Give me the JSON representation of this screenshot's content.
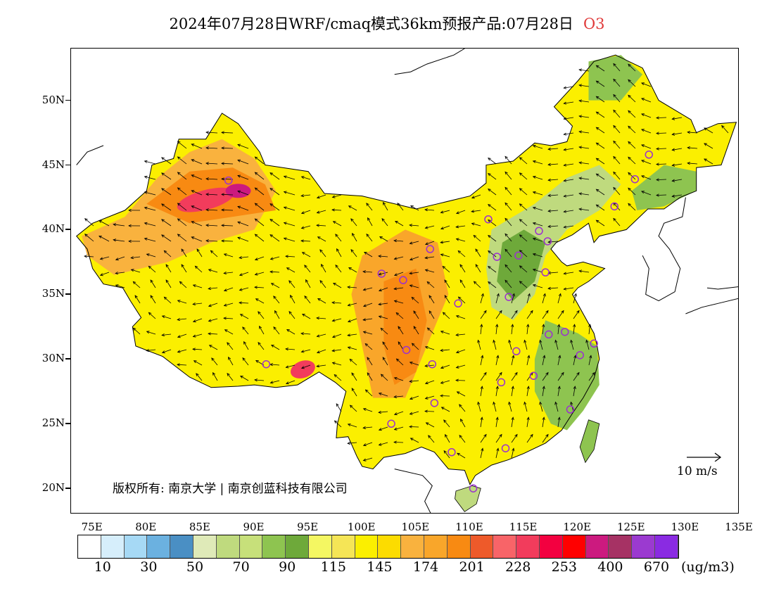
{
  "title": {
    "main": "2024年07月28日WRF/cmaq模式36km预报产品:07月28日",
    "species": "O3"
  },
  "axes": {
    "lat_labels": [
      "50N",
      "45N",
      "40N",
      "35N",
      "30N",
      "25N",
      "20N"
    ],
    "lon_labels": [
      "75E",
      "80E",
      "85E",
      "90E",
      "95E",
      "100E",
      "105E",
      "110E",
      "115E",
      "120E",
      "125E",
      "130E",
      "135E"
    ],
    "lon_range": [
      73,
      135
    ],
    "lat_range": [
      18,
      54
    ]
  },
  "copyright": "版权所有: 南京大学 | 南京创蓝科技有限公司",
  "wind_reference": "10  m/s",
  "colorbar": {
    "colors": [
      "#ffffff",
      "#d6eefb",
      "#a6d9f5",
      "#6bb1e0",
      "#4a8fc4",
      "#dfeab8",
      "#bfda7e",
      "#c7e07a",
      "#8ec450",
      "#6ea93a",
      "#f4f762",
      "#f5e556",
      "#fbef00",
      "#fcdc00",
      "#f9b23e",
      "#f9a62a",
      "#f88a12",
      "#ee5a2a",
      "#f86468",
      "#f23c5c",
      "#f30040",
      "#ff0000",
      "#cc1a7f",
      "#a63264",
      "#9b3ad0",
      "#8a2be2"
    ],
    "labels": [
      "10",
      "30",
      "50",
      "70",
      "90",
      "115",
      "145",
      "174",
      "201",
      "228",
      "253",
      "400",
      "670"
    ],
    "units": "(ug/m3)"
  },
  "stations": [
    {
      "lon": 87.6,
      "lat": 43.8
    },
    {
      "lon": 91.1,
      "lat": 29.6
    },
    {
      "lon": 101.8,
      "lat": 36.6
    },
    {
      "lon": 103.8,
      "lat": 36.1
    },
    {
      "lon": 106.3,
      "lat": 38.5
    },
    {
      "lon": 104.1,
      "lat": 30.7
    },
    {
      "lon": 106.5,
      "lat": 29.6
    },
    {
      "lon": 106.7,
      "lat": 26.6
    },
    {
      "lon": 102.7,
      "lat": 25.0
    },
    {
      "lon": 108.3,
      "lat": 22.8
    },
    {
      "lon": 110.3,
      "lat": 20.0
    },
    {
      "lon": 113.3,
      "lat": 23.1
    },
    {
      "lon": 112.9,
      "lat": 28.2
    },
    {
      "lon": 114.3,
      "lat": 30.6
    },
    {
      "lon": 115.9,
      "lat": 28.7
    },
    {
      "lon": 117.3,
      "lat": 31.9
    },
    {
      "lon": 118.8,
      "lat": 32.1
    },
    {
      "lon": 120.2,
      "lat": 30.3
    },
    {
      "lon": 121.5,
      "lat": 31.2
    },
    {
      "lon": 119.3,
      "lat": 26.1
    },
    {
      "lon": 117.0,
      "lat": 36.7
    },
    {
      "lon": 114.5,
      "lat": 38.0
    },
    {
      "lon": 112.5,
      "lat": 37.9
    },
    {
      "lon": 111.7,
      "lat": 40.8
    },
    {
      "lon": 116.4,
      "lat": 39.9
    },
    {
      "lon": 117.2,
      "lat": 39.1
    },
    {
      "lon": 113.6,
      "lat": 34.8
    },
    {
      "lon": 108.9,
      "lat": 34.3
    },
    {
      "lon": 123.4,
      "lat": 41.8
    },
    {
      "lon": 125.3,
      "lat": 43.9
    },
    {
      "lon": 126.6,
      "lat": 45.8
    }
  ]
}
